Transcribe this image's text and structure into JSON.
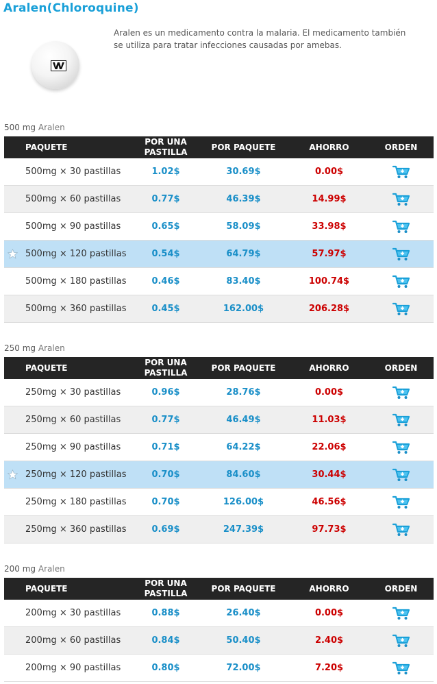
{
  "product": {
    "title": "Aralen(Chloroquine)",
    "description": "Aralen es un medicamento contra la malaria. El medicamento también se utiliza para tratar infecciones causadas por amebas."
  },
  "headers": {
    "package": "PAQUETE",
    "per_pill": "POR UNA PASTILLA",
    "per_package": "POR PAQUETE",
    "savings": "AHORRO",
    "order": "ORDEN"
  },
  "icons": {
    "pill": "pill-image",
    "cart": "cart-icon",
    "star": "star-icon"
  },
  "colors": {
    "accent": "#1aa0d8",
    "price": "#1a8fc8",
    "savings": "#cc0000",
    "header_bg": "#252525",
    "highlight": "#bfe0f6"
  },
  "sections": [
    {
      "strength": "500 mg",
      "name": "Aralen",
      "rows": [
        {
          "package": "500mg × 30 pastillas",
          "per_pill": "1.02$",
          "per_package": "30.69$",
          "savings": "0.00$",
          "highlight": false
        },
        {
          "package": "500mg × 60 pastillas",
          "per_pill": "0.77$",
          "per_package": "46.39$",
          "savings": "14.99$",
          "highlight": false
        },
        {
          "package": "500mg × 90 pastillas",
          "per_pill": "0.65$",
          "per_package": "58.09$",
          "savings": "33.98$",
          "highlight": false
        },
        {
          "package": "500mg × 120 pastillas",
          "per_pill": "0.54$",
          "per_package": "64.79$",
          "savings": "57.97$",
          "highlight": true
        },
        {
          "package": "500mg × 180 pastillas",
          "per_pill": "0.46$",
          "per_package": "83.40$",
          "savings": "100.74$",
          "highlight": false
        },
        {
          "package": "500mg × 360 pastillas",
          "per_pill": "0.45$",
          "per_package": "162.00$",
          "savings": "206.28$",
          "highlight": false
        }
      ]
    },
    {
      "strength": "250 mg",
      "name": "Aralen",
      "rows": [
        {
          "package": "250mg × 30 pastillas",
          "per_pill": "0.96$",
          "per_package": "28.76$",
          "savings": "0.00$",
          "highlight": false
        },
        {
          "package": "250mg × 60 pastillas",
          "per_pill": "0.77$",
          "per_package": "46.49$",
          "savings": "11.03$",
          "highlight": false
        },
        {
          "package": "250mg × 90 pastillas",
          "per_pill": "0.71$",
          "per_package": "64.22$",
          "savings": "22.06$",
          "highlight": false
        },
        {
          "package": "250mg × 120 pastillas",
          "per_pill": "0.70$",
          "per_package": "84.60$",
          "savings": "30.44$",
          "highlight": true
        },
        {
          "package": "250mg × 180 pastillas",
          "per_pill": "0.70$",
          "per_package": "126.00$",
          "savings": "46.56$",
          "highlight": false
        },
        {
          "package": "250mg × 360 pastillas",
          "per_pill": "0.69$",
          "per_package": "247.39$",
          "savings": "97.73$",
          "highlight": false
        }
      ]
    },
    {
      "strength": "200 mg",
      "name": "Aralen",
      "rows": [
        {
          "package": "200mg × 30 pastillas",
          "per_pill": "0.88$",
          "per_package": "26.40$",
          "savings": "0.00$",
          "highlight": false
        },
        {
          "package": "200mg × 60 pastillas",
          "per_pill": "0.84$",
          "per_package": "50.40$",
          "savings": "2.40$",
          "highlight": false
        },
        {
          "package": "200mg × 90 pastillas",
          "per_pill": "0.80$",
          "per_package": "72.00$",
          "savings": "7.20$",
          "highlight": false
        }
      ]
    }
  ]
}
